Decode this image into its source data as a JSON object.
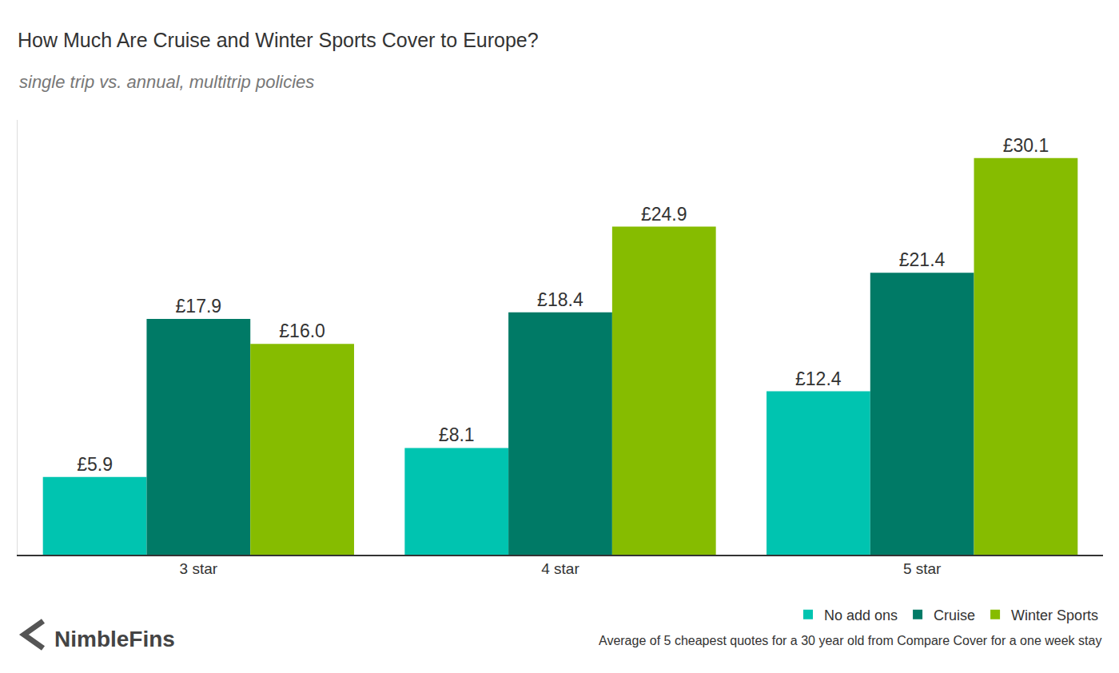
{
  "chart_data": {
    "type": "bar",
    "title": "How Much Are Cruise and Winter Sports Cover to Europe?",
    "subtitle": "single trip vs. annual, multitrip policies",
    "categories": [
      "3 star",
      "4 star",
      "5 star"
    ],
    "series": [
      {
        "name": "No add ons",
        "color": "#00c4b0",
        "values": [
          5.9,
          8.1,
          12.4
        ],
        "value_labels": [
          "£5.9",
          "£8.1",
          "£12.4"
        ]
      },
      {
        "name": "Cruise",
        "color": "#007a66",
        "values": [
          17.9,
          18.4,
          21.4
        ],
        "value_labels": [
          "£17.9",
          "£18.4",
          "£21.4"
        ]
      },
      {
        "name": "Winter Sports",
        "color": "#86bc00",
        "values": [
          16.0,
          24.9,
          30.1
        ],
        "value_labels": [
          "£16.0",
          "£24.9",
          "£30.1"
        ]
      }
    ],
    "ylim": [
      0,
      33
    ],
    "yticks": [],
    "grid": false,
    "data_labels": true,
    "tick_labels": "x",
    "legend": "bottom right",
    "annotations": [
      "NimbleFins",
      "Average of 5 cheapest quotes for a 30 year old from Compare Cover for a one week stay"
    ]
  }
}
